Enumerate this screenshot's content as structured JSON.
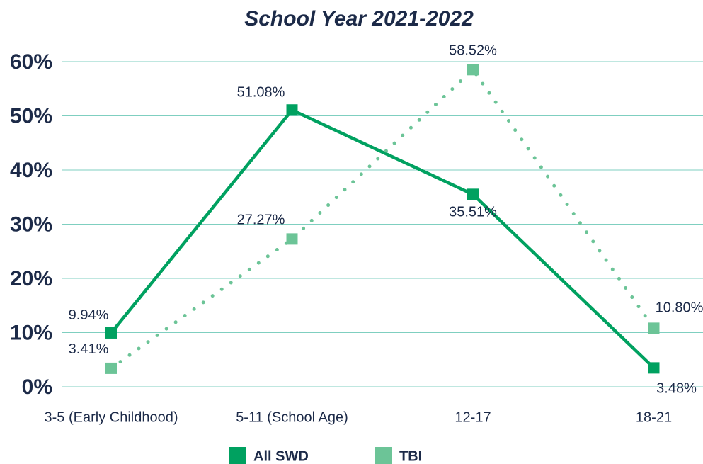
{
  "chart_data": {
    "type": "line",
    "title": "School Year 2021-2022",
    "categories": [
      "3-5 (Early Childhood)",
      "5-11 (School Age)",
      "12-17",
      "18-21"
    ],
    "series": [
      {
        "name": "All SWD",
        "color": "#00a160",
        "dash": "solid",
        "values": [
          9.94,
          51.08,
          35.51,
          3.48
        ],
        "value_labels": [
          "9.94%",
          "51.08%",
          "35.51%",
          "3.48%"
        ]
      },
      {
        "name": "TBI",
        "color": "#6cc497",
        "dash": "dotted",
        "values": [
          3.41,
          27.27,
          58.52,
          10.8
        ],
        "value_labels": [
          "3.41%",
          "27.27%",
          "58.52%",
          "10.80%"
        ]
      }
    ],
    "ylim": [
      0,
      60
    ],
    "yticks": [
      {
        "value": 0,
        "label": "0%"
      },
      {
        "value": 10,
        "label": "10%"
      },
      {
        "value": 20,
        "label": "20%"
      },
      {
        "value": 30,
        "label": "30%"
      },
      {
        "value": 40,
        "label": "40%"
      },
      {
        "value": 50,
        "label": "50%"
      },
      {
        "value": 60,
        "label": "60%"
      }
    ],
    "grid": true,
    "legend": "bottom"
  }
}
